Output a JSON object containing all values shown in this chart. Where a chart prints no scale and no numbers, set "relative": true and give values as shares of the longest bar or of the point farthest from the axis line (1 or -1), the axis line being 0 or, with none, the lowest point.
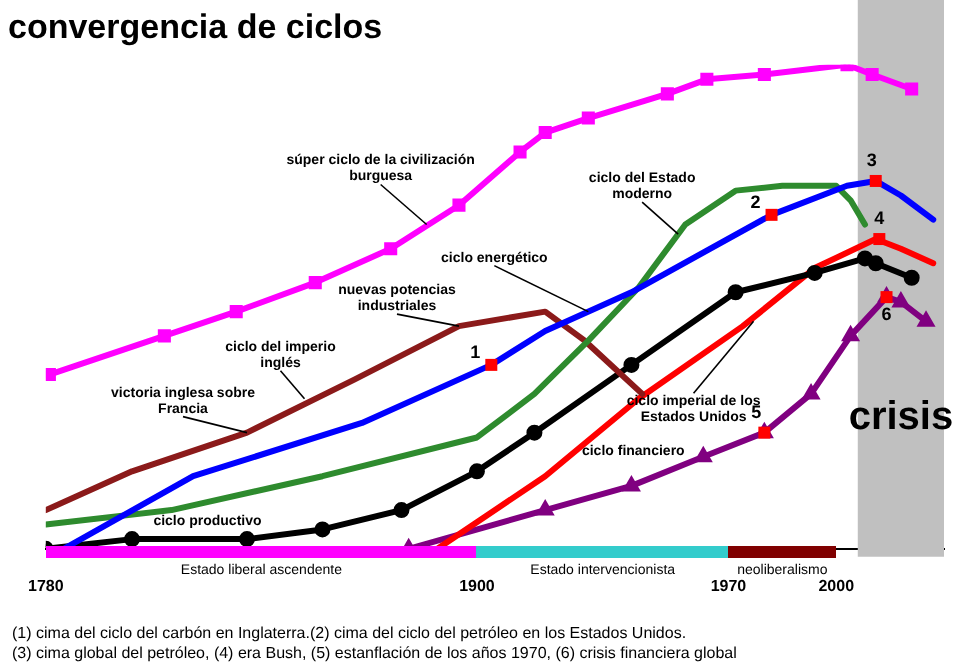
{
  "chart_data": {
    "type": "line",
    "title": "convergencia de ciclos",
    "relative": true,
    "xlim": [
      1780,
      2030
    ],
    "xticks": [
      1780,
      1900,
      1970,
      2000
    ],
    "tick_labels": "x",
    "grid": false,
    "legend": false,
    "series": [
      {
        "color": "#ff00ff",
        "marker": "square",
        "x": [
          1781,
          1813,
          1833,
          1855,
          1876,
          1895,
          1912,
          1919,
          1931,
          1953,
          1964,
          1980,
          2003,
          2010,
          2021
        ],
        "values": [
          0.36,
          0.44,
          0.49,
          0.55,
          0.62,
          0.71,
          0.82,
          0.86,
          0.89,
          0.94,
          0.97,
          0.98,
          1.0,
          0.98,
          0.95
        ]
      },
      {
        "color": "#0000ff",
        "marker": "none",
        "x": [
          1785,
          1821,
          1868,
          1904,
          1919,
          1943,
          1982,
          2003,
          2011,
          2018,
          2027
        ],
        "values": [
          0,
          0.15,
          0.26,
          0.38,
          0.45,
          0.53,
          0.69,
          0.75,
          0.76,
          0.73,
          0.68
        ]
      },
      {
        "color": "#2e8b2e",
        "marker": "none",
        "x": [
          1780,
          1815,
          1857,
          1900,
          1916,
          1931,
          1945,
          1958,
          1972,
          1985,
          2000,
          2004,
          2008
        ],
        "values": [
          0.05,
          0.08,
          0.15,
          0.23,
          0.32,
          0.43,
          0.54,
          0.67,
          0.74,
          0.75,
          0.75,
          0.72,
          0.67
        ]
      },
      {
        "color": "#8b1a1a",
        "marker": "none",
        "x": [
          1780,
          1804,
          1836,
          1866,
          1895,
          1919,
          1930,
          1946
        ],
        "values": [
          0.08,
          0.16,
          0.24,
          0.35,
          0.46,
          0.49,
          0.43,
          0.32
        ]
      },
      {
        "color": "#000000",
        "marker": "circle",
        "x": [
          1780,
          1804,
          1836,
          1857,
          1879,
          1900,
          1916,
          1943,
          1972,
          1994,
          2008,
          2011,
          2021
        ],
        "values": [
          0,
          0.02,
          0.02,
          0.04,
          0.08,
          0.16,
          0.24,
          0.38,
          0.53,
          0.57,
          0.6,
          0.59,
          0.56
        ]
      },
      {
        "color": "#ff0000",
        "marker": "none",
        "x": [
          1889,
          1919,
          1945,
          1974,
          1994,
          2011,
          2018,
          2027
        ],
        "values": [
          0,
          0.15,
          0.31,
          0.46,
          0.58,
          0.64,
          0.62,
          0.59
        ]
      },
      {
        "color": "#800080",
        "marker": "triangle",
        "x": [
          1881,
          1919,
          1943,
          1963,
          1980,
          1993,
          2004,
          2014,
          2018,
          2025
        ],
        "values": [
          0,
          0.08,
          0.13,
          0.19,
          0.24,
          0.32,
          0.44,
          0.52,
          0.51,
          0.47
        ]
      }
    ],
    "bands": [
      {
        "axis": "x",
        "from": 2006,
        "to": 2030,
        "label": "crisis",
        "color": "#c0c0c0"
      }
    ],
    "annotations": [
      {
        "text": "1",
        "x": 1904,
        "y": 0.38
      },
      {
        "text": "2",
        "x": 1982,
        "y": 0.69
      },
      {
        "text": "3",
        "x": 2011,
        "y": 0.76
      },
      {
        "text": "4",
        "x": 2012,
        "y": 0.64
      },
      {
        "text": "5",
        "x": 1980,
        "y": 0.24
      },
      {
        "text": "6",
        "x": 2014,
        "y": 0.52
      },
      {
        "text": "súper ciclo de la civilización burguesa",
        "x": 1886,
        "y": 0.67
      },
      {
        "text": "ciclo del Estado moderno",
        "x": 1956,
        "y": 0.65
      },
      {
        "text": "ciclo energético",
        "x": 1931,
        "y": 0.49
      },
      {
        "text": "ciclo del imperio inglés",
        "x": 1852,
        "y": 0.31
      },
      {
        "text": "victoria inglesa sobre Francia",
        "x": 1836,
        "y": 0.24
      },
      {
        "text": "nuevas potencias industriales",
        "x": 1895,
        "y": 0.46
      },
      {
        "text": "ciclo productivo",
        "x": 1825,
        "y": 0.02
      },
      {
        "text": "ciclo imperial de los Estados Unidos",
        "x": 1977,
        "y": 0.47
      },
      {
        "text": "ciclo financiero",
        "x": 1963,
        "y": 0.19
      },
      "Estado liberal ascendente",
      "Estado intervencionista",
      "neoliberalismo",
      "(1) cima del ciclo del carbón en Inglaterra.(2) cima del ciclo del petróleo en los Estados Unidos.",
      "(3) cima global del petróleo, (4) era Bush, (5) estanflación de los años 1970, (6) crisis financiera global"
    ]
  }
}
